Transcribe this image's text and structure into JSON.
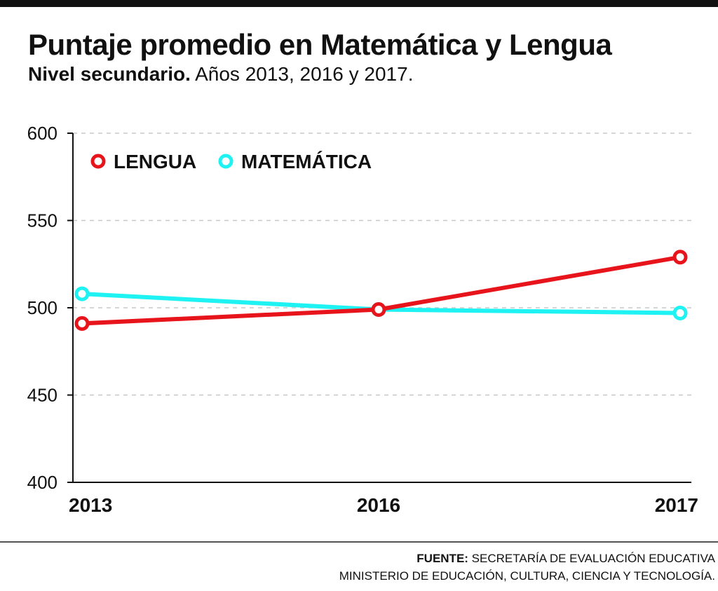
{
  "header": {
    "title": "Puntaje promedio en Matemática y Lengua",
    "subtitle_bold": "Nivel secundario.",
    "subtitle_rest": " Años 2013, 2016 y 2017."
  },
  "chart_data": {
    "type": "line",
    "categories": [
      "2013",
      "2016",
      "2017"
    ],
    "series": [
      {
        "name": "LENGUA",
        "color": "#e8141c",
        "values": [
          491,
          499,
          529
        ]
      },
      {
        "name": "MATEMÁTICA",
        "color": "#1ff2f2",
        "values": [
          508,
          499,
          497
        ]
      }
    ],
    "ylim": [
      400,
      600
    ],
    "yticks": [
      400,
      450,
      500,
      550,
      600
    ],
    "grid": true,
    "legend_position": "top-left"
  },
  "footer": {
    "source_label": "FUENTE:",
    "source_line1": " SECRETARÍA DE EVALUACIÓN EDUCATIVA",
    "source_line2": "MINISTERIO DE EDUCACIÓN, CULTURA, CIENCIA Y TECNOLOGÍA."
  }
}
